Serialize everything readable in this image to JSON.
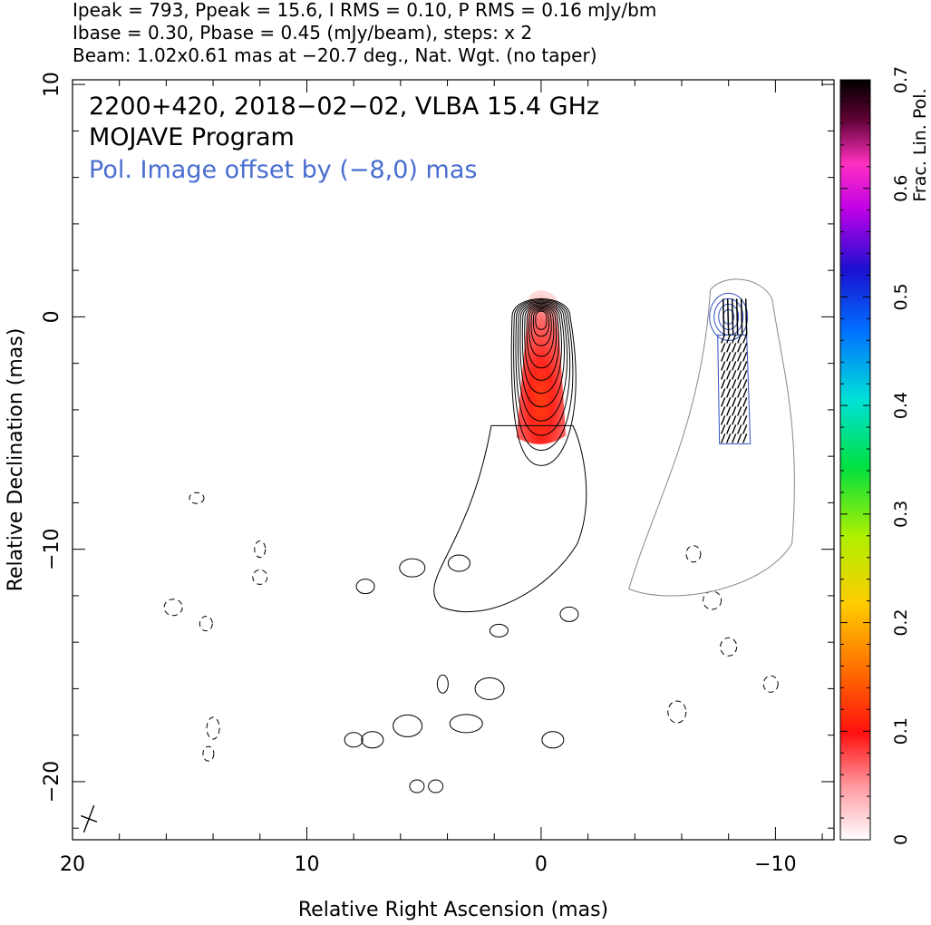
{
  "header": {
    "line1": "Ipeak = 793, Ppeak = 15.6, I RMS = 0.10, P RMS = 0.16 mJy/bm",
    "line2": "Ibase = 0.30, Pbase = 0.45 (mJy/beam), steps: x 2",
    "line3": "Beam: 1.02x0.61 mas at −20.7 deg., Nat. Wgt. (no taper)"
  },
  "chart_data": {
    "type": "contour",
    "annotations": {
      "source": "2200+420, 2018−02−02, VLBA 15.4 GHz",
      "program": "MOJAVE Program",
      "pol_note": "Pol. Image offset by (−8,0) mas"
    },
    "xlabel": "Relative Right Ascension (mas)",
    "ylabel": "Relative Declination (mas)",
    "xlim": [
      20,
      -12.5
    ],
    "ylim": [
      -22.5,
      10.2
    ],
    "x_ticks": [
      20,
      10,
      0,
      -10
    ],
    "x_tick_labels": [
      "20",
      "10",
      "0",
      "−10"
    ],
    "y_ticks": [
      10,
      0,
      -10,
      -20
    ],
    "y_tick_labels": [
      "10",
      "0",
      "−10",
      "−20"
    ],
    "colorbar": {
      "label": "Frac. Lin. Pol.",
      "range": [
        0,
        0.7
      ],
      "ticks": [
        0,
        0.1,
        0.2,
        0.3,
        0.4,
        0.5,
        0.6,
        0.7
      ],
      "tick_labels": [
        "0",
        "0.1",
        "0.2",
        "0.3",
        "0.4",
        "0.5",
        "0.6",
        "0.7"
      ]
    },
    "stokes_i": {
      "peak_mjy_per_beam": 793,
      "base_mjy_per_beam": 0.3,
      "step_factor": 2,
      "core": [
        0,
        0
      ],
      "jet_axis": [
        [
          0,
          0
        ],
        [
          -0.3,
          -3
        ],
        [
          -0.5,
          -6
        ],
        [
          -1,
          -9
        ],
        [
          -2,
          -12
        ]
      ]
    },
    "pol_image": {
      "offset_mas": [
        -8,
        0
      ],
      "peak_mjy_per_beam": 15.6,
      "base_mjy_per_beam": 0.45
    },
    "frac_pol_region": {
      "x_range": [
        0.9,
        -0.9
      ],
      "y_range": [
        1.2,
        -5.5
      ],
      "max_value": 0.12
    },
    "beam": {
      "major_mas": 1.02,
      "minor_mas": 0.61,
      "pa_deg": -20.7,
      "position": [
        19.3,
        -21.6
      ]
    }
  }
}
